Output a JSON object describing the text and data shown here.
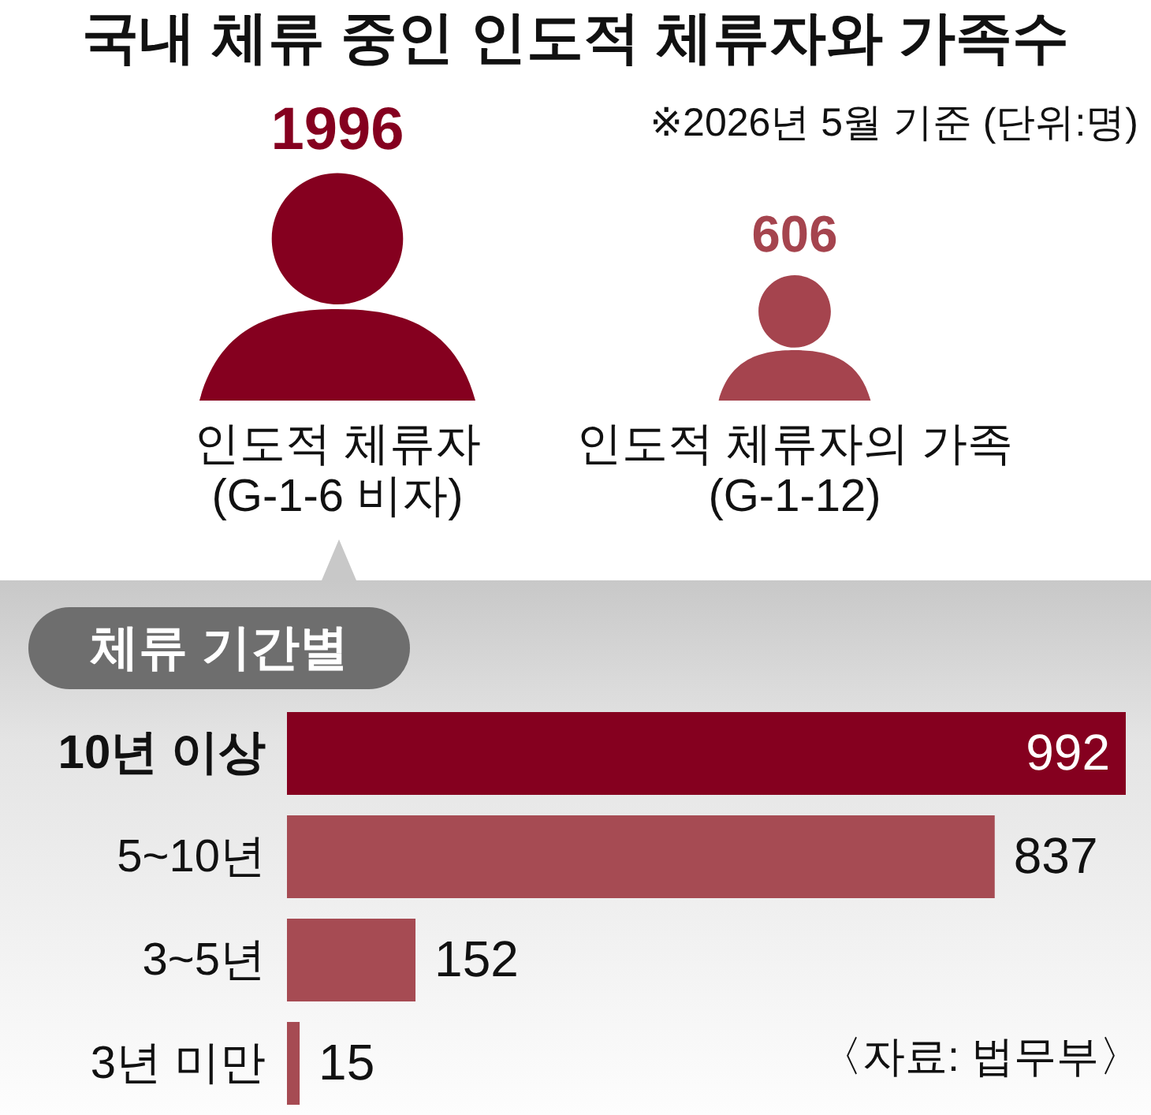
{
  "chart_data": [
    {
      "type": "other",
      "title": "국내 체류 중인 인도적 체류자와 가족수",
      "subtitle": "※2026년 5월 기준 (단위:명)",
      "categories": [
        "인도적 체류자\n(G-1-6 비자)",
        "인도적 체류자의 가족\n(G-1-12)"
      ],
      "values": [
        1996,
        606
      ],
      "colors": [
        "#85001f",
        "#a5444e"
      ],
      "data_labels": true
    },
    {
      "type": "bar",
      "orientation": "horizontal",
      "title": "체류 기간별",
      "categories": [
        "10년 이상",
        "5~10년",
        "3~5년",
        "3년 미만"
      ],
      "values": [
        992,
        837,
        152,
        15
      ],
      "colors": [
        "#85001f",
        "#a64b53",
        "#a64b53",
        "#a64b53"
      ],
      "data_labels": true,
      "annotations": [
        "〈자료: 법무부〉"
      ]
    }
  ]
}
